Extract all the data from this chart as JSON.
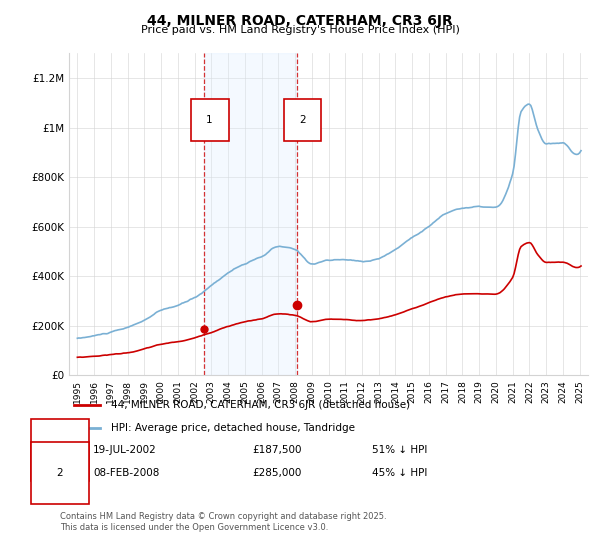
{
  "title": "44, MILNER ROAD, CATERHAM, CR3 6JR",
  "subtitle": "Price paid vs. HM Land Registry's House Price Index (HPI)",
  "legend_line1": "44, MILNER ROAD, CATERHAM, CR3 6JR (detached house)",
  "legend_line2": "HPI: Average price, detached house, Tandridge",
  "footer": "Contains HM Land Registry data © Crown copyright and database right 2025.\nThis data is licensed under the Open Government Licence v3.0.",
  "transaction1_date": "19-JUL-2002",
  "transaction1_price": "£187,500",
  "transaction1_hpi": "51% ↓ HPI",
  "transaction2_date": "08-FEB-2008",
  "transaction2_price": "£285,000",
  "transaction2_hpi": "45% ↓ HPI",
  "vline1_x": 2002.55,
  "vline2_x": 2008.1,
  "marker1_price_y": 187500,
  "marker2_price_y": 285000,
  "hpi_color": "#7ab0d4",
  "price_color": "#cc0000",
  "vline_color": "#cc0000",
  "shade_color": "#ddeeff",
  "ylim_max": 1300000,
  "ylim_min": 0,
  "xlim_min": 1994.5,
  "xlim_max": 2025.5,
  "background_color": "#ffffff",
  "yticks": [
    0,
    200000,
    400000,
    600000,
    800000,
    1000000,
    1200000
  ],
  "ytick_labels": [
    "£0",
    "£200K",
    "£400K",
    "£600K",
    "£800K",
    "£1M",
    "£1.2M"
  ],
  "xticks": [
    1995,
    1996,
    1997,
    1998,
    1999,
    2000,
    2001,
    2002,
    2003,
    2004,
    2005,
    2006,
    2007,
    2008,
    2009,
    2010,
    2011,
    2012,
    2013,
    2014,
    2015,
    2016,
    2017,
    2018,
    2019,
    2020,
    2021,
    2022,
    2023,
    2024,
    2025
  ]
}
